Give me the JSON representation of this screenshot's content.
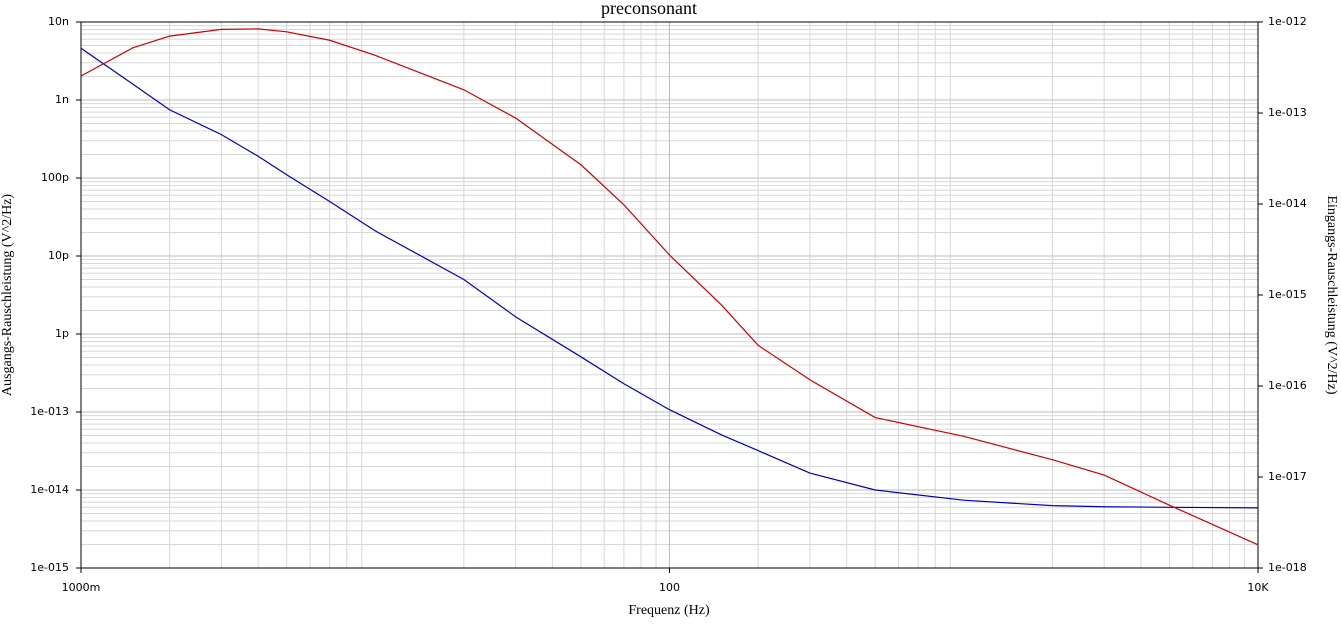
{
  "chart_data": {
    "type": "line",
    "title": "preconsonant",
    "xlabel": "Frequenz (Hz)",
    "ylabel": "Ausgangs-Rauschleistung (V^2/Hz)",
    "y2label": "Eingangs-Rauschleistung (V^2/Hz)",
    "xscale": "log",
    "yscale": "log",
    "y2scale": "log",
    "grid": true,
    "x": [
      1,
      1.5,
      2,
      3,
      4,
      5,
      7,
      10,
      20,
      30,
      50,
      70,
      100,
      150,
      200,
      300,
      500,
      1000,
      2000,
      3000,
      5000,
      10000
    ],
    "series": [
      {
        "name": "Ausgang",
        "color": "#0000c0",
        "axis": "y",
        "values": [
          4.6e-09,
          1.6e-09,
          7.5e-10,
          3.6e-10,
          1.9e-10,
          1.1e-10,
          5e-11,
          2.1e-11,
          5e-12,
          1.66e-12,
          5.1e-13,
          2.3e-13,
          1.07e-13,
          5.1e-14,
          3.2e-14,
          1.65e-14,
          1e-14,
          7.4e-15,
          6.3e-15,
          6.1e-15,
          6e-15,
          5.9e-15
        ]
      },
      {
        "name": "Eingang",
        "color": "#d00000",
        "axis": "y2",
        "values": [
          2.55e-13,
          5.2e-13,
          7e-13,
          8.3e-13,
          8.4e-13,
          7.8e-13,
          6.3e-13,
          4.3e-13,
          1.8e-13,
          8.8e-14,
          2.7e-14,
          9.8e-15,
          2.75e-15,
          7.8e-16,
          2.8e-16,
          1.17e-16,
          4.5e-17,
          2.8e-17,
          1.55e-17,
          1.05e-17,
          4.9e-18,
          1.8e-18
        ]
      }
    ],
    "xlim": [
      1,
      10000
    ],
    "xticks": [
      {
        "value": 1,
        "label": "1000m"
      },
      100,
      {
        "value": 10000,
        "label": "10K"
      }
    ],
    "ylim": [
      1e-15,
      1e-08
    ],
    "yticks": [
      {
        "value": 1e-15,
        "label": "1e-015"
      },
      {
        "value": 1e-14,
        "label": "1e-014"
      },
      {
        "value": 1e-13,
        "label": "1e-013"
      },
      {
        "value": 1e-12,
        "label": "1p"
      },
      {
        "value": 1e-11,
        "label": "10p"
      },
      {
        "value": 1e-10,
        "label": "100p"
      },
      {
        "value": 1e-09,
        "label": "1n"
      },
      {
        "value": 1e-08,
        "label": "10n"
      }
    ],
    "y2lim": [
      1e-18,
      1e-12
    ],
    "y2ticks": [
      {
        "value": 1e-18,
        "label": "1e-018"
      },
      {
        "value": 1e-17,
        "label": "1e-017"
      },
      {
        "value": 1e-16,
        "label": "1e-016"
      },
      {
        "value": 1e-15,
        "label": "1e-015"
      },
      {
        "value": 1e-14,
        "label": "1e-014"
      },
      {
        "value": 1e-13,
        "label": "1e-013"
      },
      {
        "value": 1e-12,
        "label": "1e-012"
      }
    ]
  }
}
